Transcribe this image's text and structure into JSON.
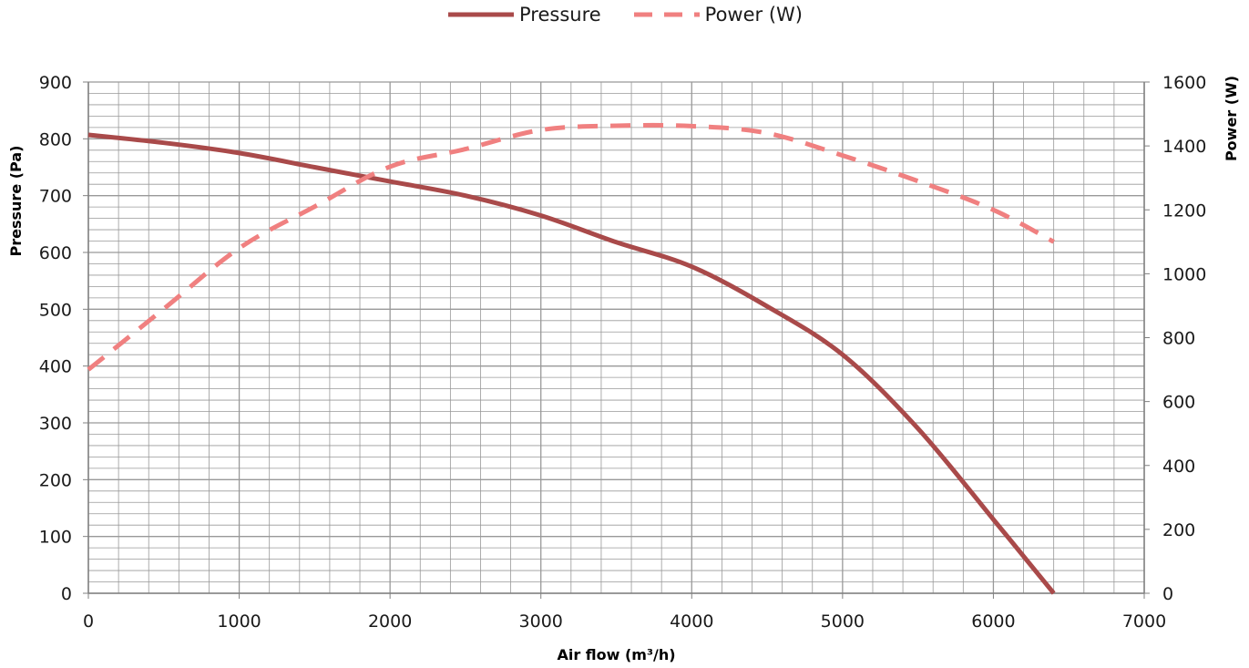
{
  "legend": {
    "pressure": "Pressure",
    "power": "Power (W)"
  },
  "colors": {
    "pressure": "#a94a4a",
    "power": "#f08080",
    "grid": "#999999",
    "axis": "#808080"
  },
  "chart_data": {
    "type": "line",
    "xlabel": "Air flow (m³/h)",
    "ylabel": "Pressure (Pa)",
    "y2label": "Power (W)",
    "xlim": [
      0,
      7000
    ],
    "ylim": [
      0,
      900
    ],
    "y2lim": [
      0,
      1600
    ],
    "x_ticks": [
      0,
      1000,
      2000,
      3000,
      4000,
      5000,
      6000,
      7000
    ],
    "y_ticks": [
      0,
      100,
      200,
      300,
      400,
      500,
      600,
      700,
      800,
      900
    ],
    "y2_ticks": [
      0,
      200,
      400,
      600,
      800,
      1000,
      1200,
      1400,
      1600
    ],
    "grid": true,
    "legend_position": "top",
    "series": [
      {
        "name": "Pressure",
        "axis": "left",
        "style": "solid",
        "x": [
          0,
          500,
          1000,
          1500,
          2000,
          2500,
          3000,
          3500,
          4000,
          4500,
          5000,
          5500,
          6000,
          6400
        ],
        "values": [
          807,
          793,
          775,
          750,
          725,
          700,
          665,
          618,
          575,
          505,
          420,
          290,
          130,
          0
        ]
      },
      {
        "name": "Power (W)",
        "axis": "right",
        "style": "dashed",
        "x": [
          0,
          500,
          1000,
          1500,
          2000,
          2500,
          3000,
          3500,
          4000,
          4500,
          5000,
          5500,
          6000,
          6400
        ],
        "values": [
          700,
          890,
          1080,
          1210,
          1335,
          1390,
          1450,
          1463,
          1462,
          1440,
          1370,
          1290,
          1200,
          1100
        ]
      }
    ]
  }
}
